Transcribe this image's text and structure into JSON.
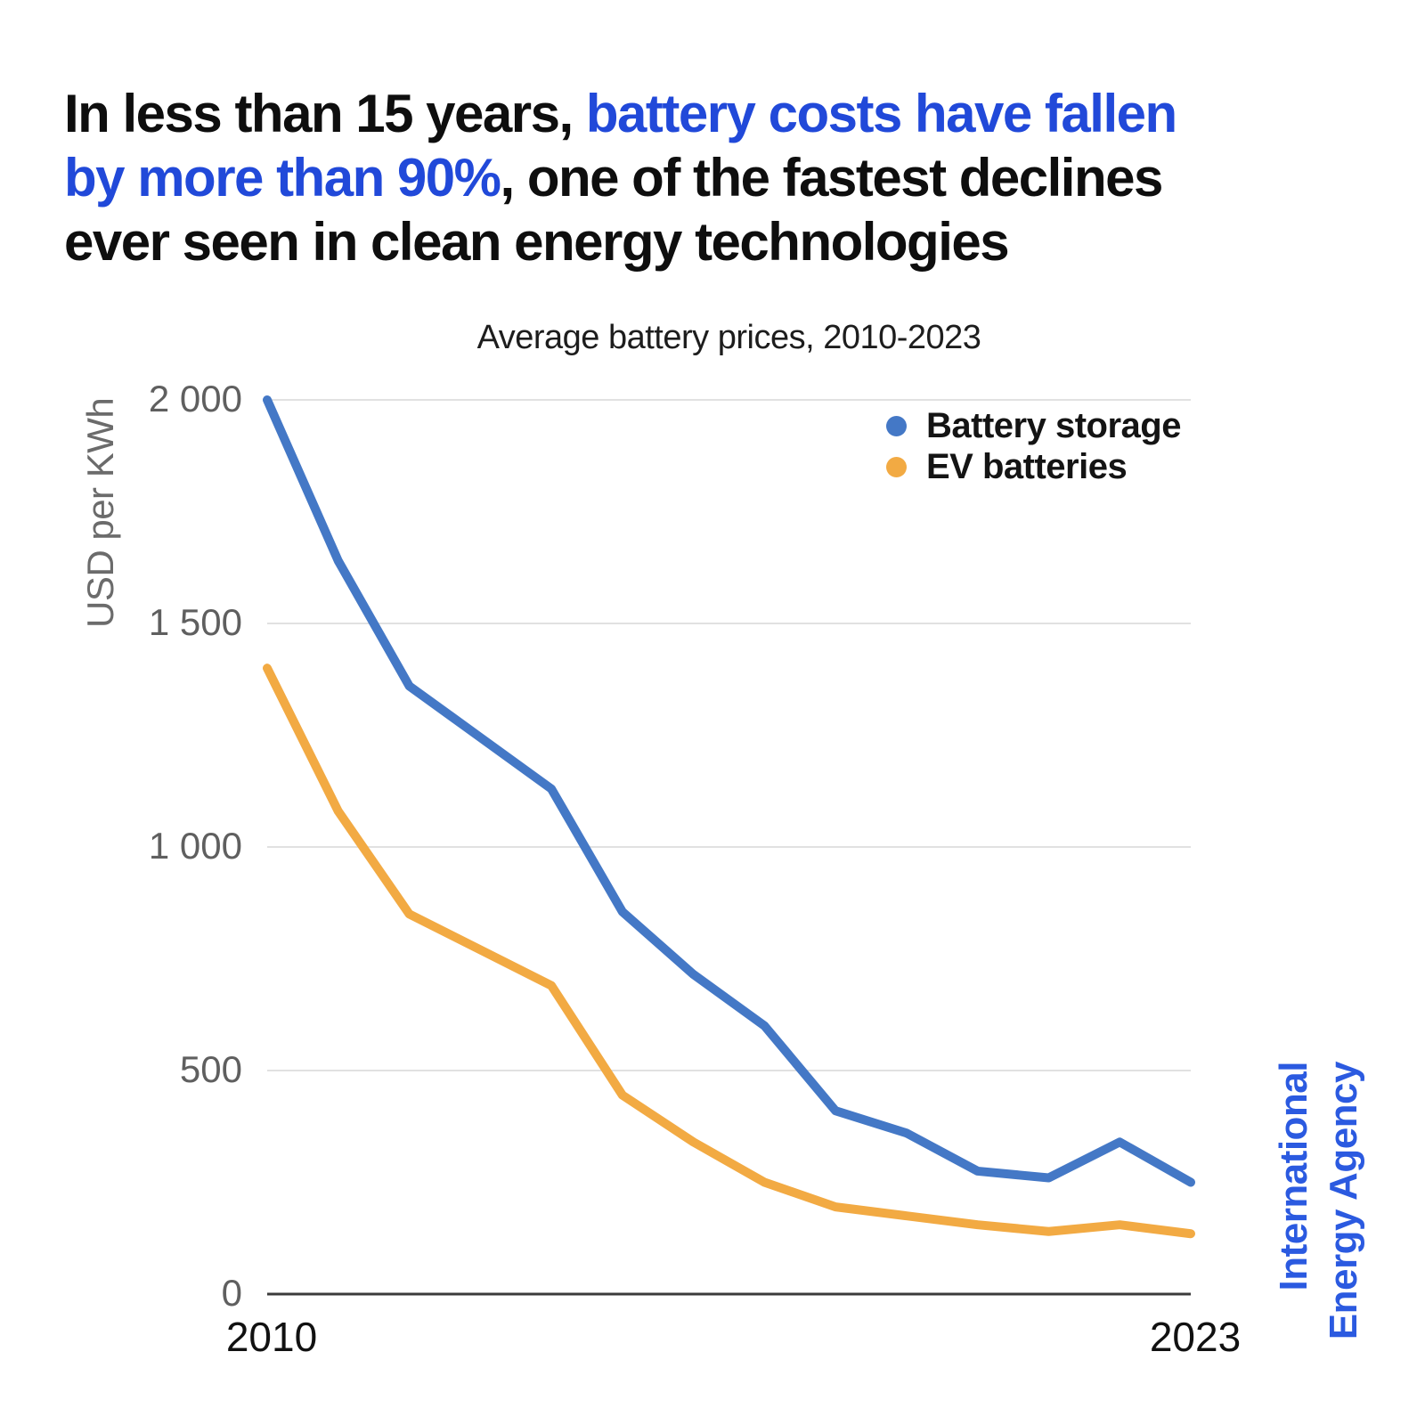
{
  "headline": {
    "lines": [
      [
        {
          "text": "In less than 15 years, ",
          "style": "dark"
        },
        {
          "text": "battery costs have fallen",
          "style": "blue"
        }
      ],
      [
        {
          "text": "by more than 90%",
          "style": "blue"
        },
        {
          "text": ", one of the fastest declines",
          "style": "dark"
        }
      ],
      [
        {
          "text": "ever seen in clean energy technologies",
          "style": "dark"
        }
      ]
    ],
    "accent_color": "#2149d9",
    "text_color": "#0e0e0e"
  },
  "chart_data": {
    "type": "line",
    "title": "Average battery prices, 2010-2023",
    "ylabel": "USD per KWh",
    "xlabel": "",
    "x": [
      2010,
      2011,
      2012,
      2013,
      2014,
      2015,
      2016,
      2017,
      2018,
      2019,
      2020,
      2021,
      2022,
      2023
    ],
    "series": [
      {
        "name": "Battery storage",
        "color": "#4478c6",
        "values": [
          2000,
          1640,
          1360,
          1245,
          1130,
          855,
          715,
          600,
          410,
          360,
          275,
          260,
          340,
          250
        ]
      },
      {
        "name": "EV batteries",
        "color": "#f2aa43",
        "values": [
          1400,
          1080,
          850,
          770,
          690,
          445,
          340,
          250,
          195,
          175,
          155,
          140,
          155,
          135
        ]
      }
    ],
    "ylim": [
      0,
      2000
    ],
    "yticks": [
      0,
      500,
      1000,
      1500,
      2000
    ],
    "ytick_labels": [
      "0",
      "500",
      "1 000",
      "1 500",
      "2 000"
    ],
    "xticks": [
      2010,
      2023
    ],
    "xtick_labels": [
      "2010",
      "2023"
    ],
    "grid": true,
    "legend_position": "top-right",
    "grid_color": "#e1e1e1",
    "axis_color": "#3b3b3b"
  },
  "attribution": {
    "line1": "International",
    "line2": "Energy Agency",
    "color": "#2b5ae0"
  }
}
